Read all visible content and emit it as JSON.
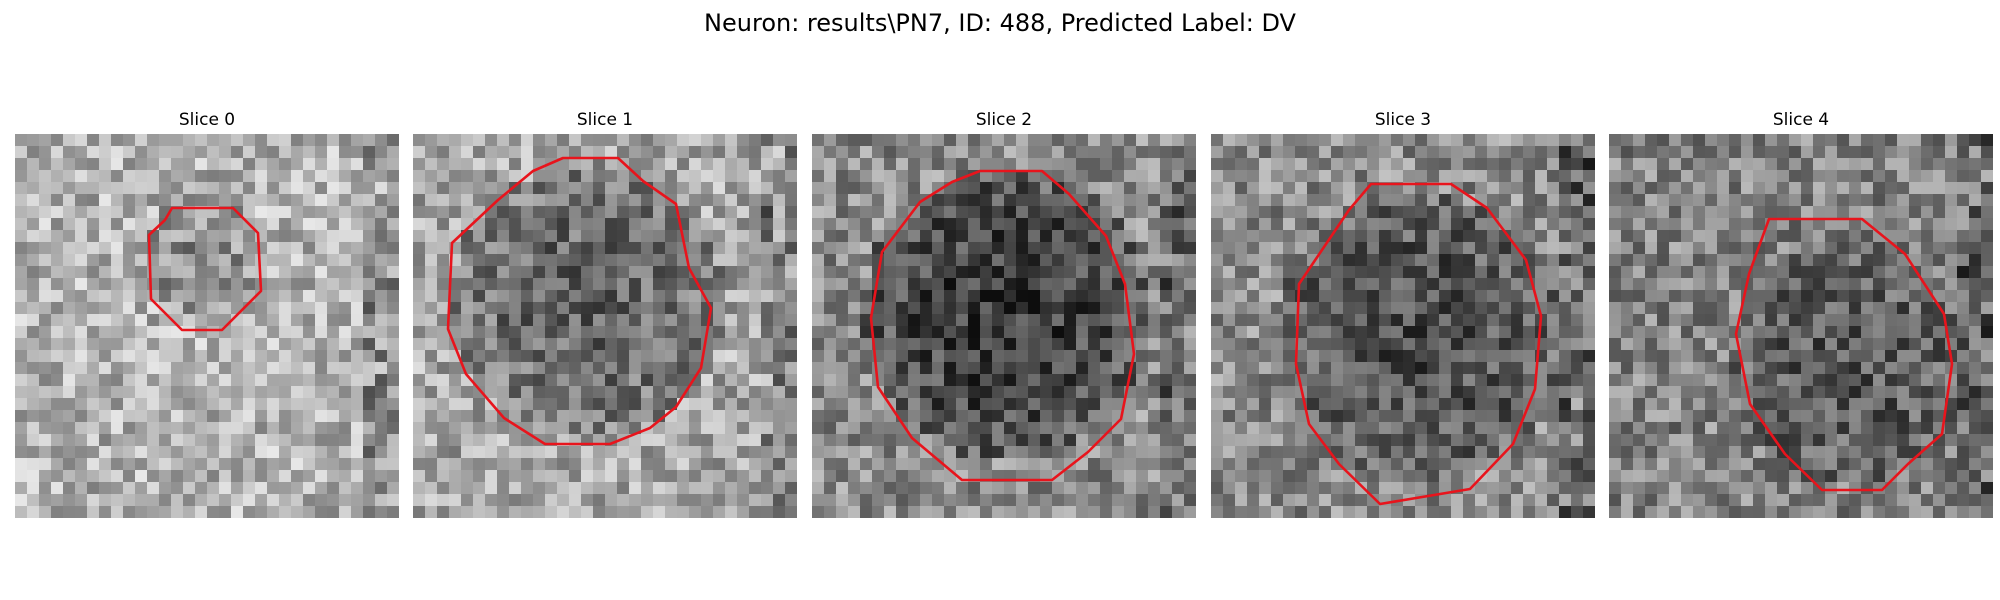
{
  "figure": {
    "title": "Neuron: results\\PN7, ID: 488, Predicted Label: DV"
  },
  "contour_color": "#e8141c",
  "slices": [
    {
      "title": "Slice 0",
      "seed": 11,
      "base": 0.7,
      "dark_region": 0.15
    },
    {
      "title": "Slice 1",
      "seed": 23,
      "base": 0.66,
      "dark_region": 0.27
    },
    {
      "title": "Slice 2",
      "seed": 37,
      "base": 0.55,
      "dark_region": 0.33
    },
    {
      "title": "Slice 3",
      "seed": 51,
      "base": 0.55,
      "dark_region": 0.25
    },
    {
      "title": "Slice 4",
      "seed": 67,
      "base": 0.52,
      "dark_region": 0.18
    }
  ]
}
